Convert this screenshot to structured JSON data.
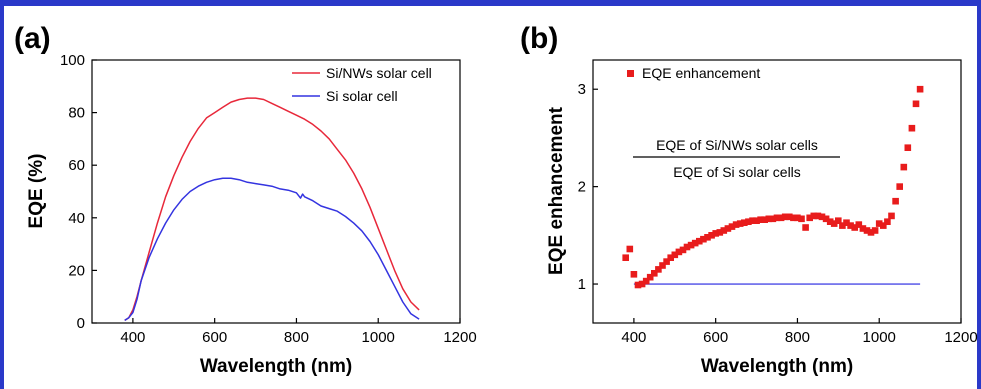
{
  "chart_data": [
    {
      "panel_label": "(a)",
      "type": "line",
      "xlabel": "Wavelength (nm)",
      "ylabel": "EQE (%)",
      "xlim": [
        300,
        1200
      ],
      "ylim": [
        0,
        100
      ],
      "xticks": [
        400,
        600,
        800,
        1000,
        1200
      ],
      "yticks": [
        0,
        20,
        40,
        60,
        80,
        100
      ],
      "legend_position": "top-right",
      "grid": false,
      "series": [
        {
          "name": "Si/NWs solar cell",
          "color": "#e8283a",
          "x": [
            380,
            390,
            400,
            410,
            420,
            440,
            460,
            480,
            500,
            520,
            540,
            560,
            580,
            600,
            620,
            640,
            660,
            680,
            700,
            720,
            740,
            760,
            780,
            800,
            820,
            840,
            860,
            880,
            900,
            920,
            940,
            960,
            980,
            1000,
            1020,
            1040,
            1060,
            1080,
            1100
          ],
          "y": [
            1,
            2,
            5,
            10,
            16,
            27,
            38,
            48,
            56,
            63,
            69,
            74,
            78,
            80,
            82,
            84,
            85,
            85.5,
            85.5,
            85,
            83.5,
            82,
            80.5,
            79,
            77.5,
            75.5,
            73,
            70,
            66,
            62,
            57,
            51,
            44,
            36,
            28,
            20,
            13,
            8,
            5
          ]
        },
        {
          "name": "Si solar cell",
          "color": "#3434e0",
          "x": [
            380,
            390,
            400,
            410,
            420,
            440,
            460,
            480,
            500,
            520,
            540,
            560,
            580,
            600,
            620,
            640,
            660,
            680,
            700,
            720,
            740,
            760,
            780,
            800,
            810,
            815,
            820,
            840,
            860,
            880,
            900,
            920,
            940,
            960,
            980,
            1000,
            1020,
            1040,
            1060,
            1080,
            1100
          ],
          "y": [
            1,
            2,
            4,
            9,
            16,
            25,
            32,
            38,
            43,
            47,
            50,
            52,
            53.5,
            54.5,
            55,
            55,
            54.5,
            53.5,
            53,
            52.5,
            52,
            51,
            50.5,
            49.5,
            47.5,
            49,
            48,
            46.5,
            44.5,
            43.5,
            42.5,
            40.5,
            38,
            35,
            31,
            26,
            20,
            14,
            8,
            3.5,
            1.5
          ]
        }
      ]
    },
    {
      "panel_label": "(b)",
      "type": "scatter",
      "xlabel": "Wavelength (nm)",
      "ylabel": "EQE enhancement",
      "xlim": [
        300,
        1200
      ],
      "ylim": [
        0.6,
        3.3
      ],
      "xticks": [
        400,
        600,
        800,
        1000,
        1200
      ],
      "yticks": [
        1,
        2,
        3
      ],
      "legend_position": "top-left",
      "grid": false,
      "annotation": {
        "numerator": "EQE of Si/NWs solar cells",
        "denominator": "EQE of Si solar cells"
      },
      "reference_line": {
        "y": 1,
        "x_from": 400,
        "x_to": 1100,
        "color": "#4a4ae6"
      },
      "series": [
        {
          "name": "EQE enhancement",
          "color": "#e81c1c",
          "marker": "square",
          "x": [
            380,
            390,
            400,
            410,
            420,
            430,
            440,
            450,
            460,
            470,
            480,
            490,
            500,
            510,
            520,
            530,
            540,
            550,
            560,
            570,
            580,
            590,
            600,
            610,
            620,
            630,
            640,
            650,
            660,
            670,
            680,
            690,
            700,
            710,
            720,
            730,
            740,
            750,
            760,
            770,
            780,
            790,
            800,
            810,
            820,
            830,
            840,
            850,
            860,
            870,
            880,
            890,
            900,
            910,
            920,
            930,
            940,
            950,
            960,
            970,
            980,
            990,
            1000,
            1010,
            1020,
            1030,
            1040,
            1050,
            1060,
            1070,
            1080,
            1090,
            1100
          ],
          "y": [
            1.27,
            1.36,
            1.1,
            0.99,
            1.0,
            1.03,
            1.07,
            1.11,
            1.15,
            1.19,
            1.23,
            1.27,
            1.3,
            1.33,
            1.35,
            1.38,
            1.4,
            1.42,
            1.44,
            1.46,
            1.48,
            1.5,
            1.52,
            1.53,
            1.55,
            1.57,
            1.59,
            1.61,
            1.62,
            1.63,
            1.64,
            1.65,
            1.65,
            1.66,
            1.66,
            1.67,
            1.67,
            1.68,
            1.68,
            1.69,
            1.69,
            1.68,
            1.68,
            1.67,
            1.58,
            1.68,
            1.7,
            1.7,
            1.69,
            1.67,
            1.64,
            1.62,
            1.65,
            1.6,
            1.63,
            1.6,
            1.58,
            1.61,
            1.57,
            1.55,
            1.53,
            1.55,
            1.62,
            1.6,
            1.64,
            1.7,
            1.85,
            2.0,
            2.2,
            2.4,
            2.6,
            2.85,
            3.0
          ]
        }
      ]
    }
  ]
}
